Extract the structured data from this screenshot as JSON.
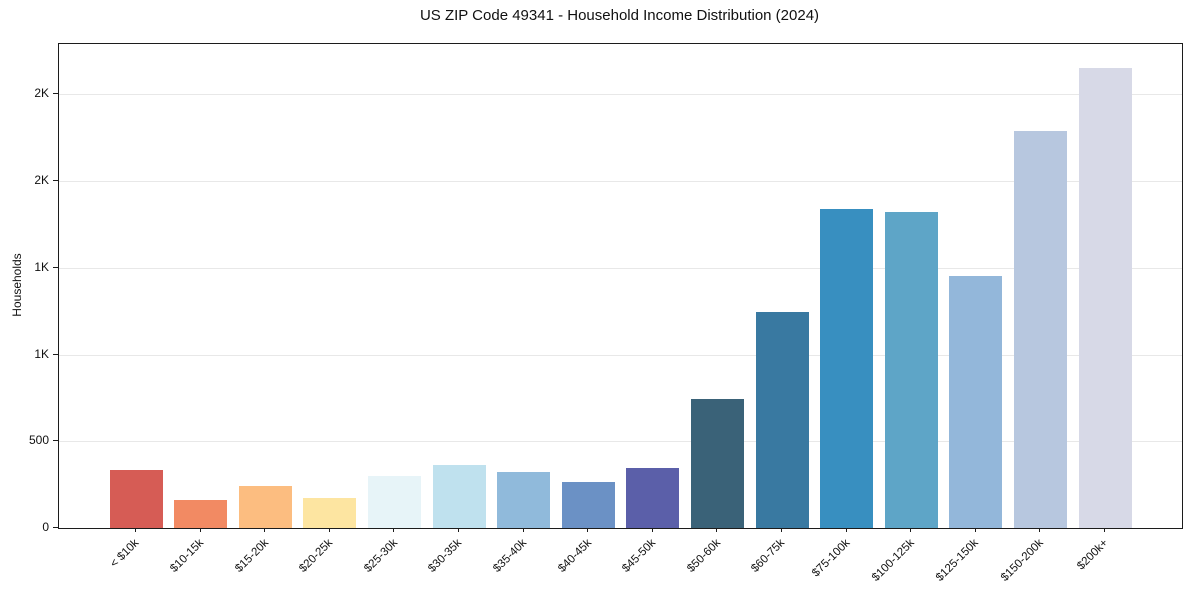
{
  "title": "US ZIP Code 49341 - Household Income Distribution (2024)",
  "chart_data": {
    "type": "bar",
    "title": "US ZIP Code 49341 - Household Income Distribution (2024)",
    "xlabel": "",
    "ylabel": "Households",
    "categories": [
      "< $10k",
      "$10-15k",
      "$15-20k",
      "$20-25k",
      "$25-30k",
      "$30-35k",
      "$35-40k",
      "$40-45k",
      "$45-50k",
      "$50-60k",
      "$60-75k",
      "$75-100k",
      "$100-125k",
      "$125-150k",
      "$150-200k",
      "$200k+"
    ],
    "values": [
      335,
      160,
      242,
      173,
      298,
      361,
      321,
      263,
      344,
      745,
      1246,
      1840,
      1822,
      1454,
      2290,
      2650
    ],
    "bar_colors": [
      "#d65c55",
      "#f28a63",
      "#fcbd80",
      "#fde5a1",
      "#e7f4f8",
      "#bfe1ee",
      "#90badb",
      "#6b91c5",
      "#5b5fa9",
      "#3a6278",
      "#3979a1",
      "#388fc0",
      "#5ea5c7",
      "#93b7da",
      "#b7c7df",
      "#d7d9e7"
    ],
    "ylim": [
      0,
      2791
    ],
    "yticks": {
      "values": [
        0,
        500,
        1000,
        1500,
        2000,
        2500
      ],
      "labels": [
        "0",
        "500",
        "1K",
        "1K",
        "2K",
        "2K"
      ]
    },
    "grid": true,
    "grid_color": "#e8e8e8",
    "axis_color": "#1c1c1c",
    "background": "#ffffff",
    "legend": "none",
    "x_label_rotation_deg": -45
  }
}
